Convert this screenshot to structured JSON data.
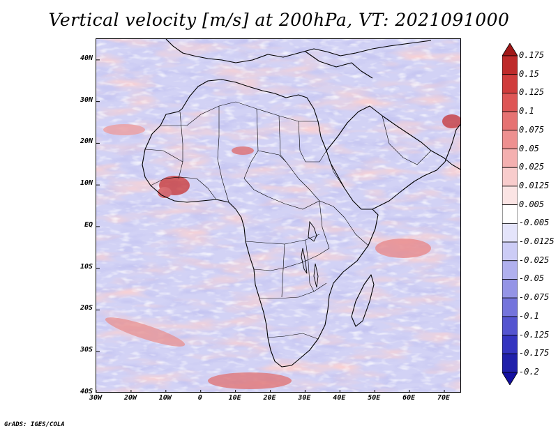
{
  "title": "Vertical velocity [m/s] at 200hPa, VT: 2021091000",
  "credit": "GrADS: IGES/COLA",
  "map": {
    "lon_range": [
      -30,
      75
    ],
    "lat_range": [
      -40,
      45
    ],
    "lat_ticks": [
      "40N",
      "30N",
      "20N",
      "10N",
      "EQ",
      "10S",
      "20S",
      "30S",
      "40S"
    ],
    "lat_values": [
      40,
      30,
      20,
      10,
      0,
      -10,
      -20,
      -30,
      -40
    ],
    "lon_ticks": [
      "30W",
      "20W",
      "10W",
      "0",
      "10E",
      "20E",
      "30E",
      "40E",
      "50E",
      "60E",
      "70E"
    ],
    "lon_values": [
      -30,
      -20,
      -10,
      0,
      10,
      20,
      30,
      40,
      50,
      60,
      70
    ],
    "field_description_colors": {
      "background": "#d4d4f6",
      "weak_up": "#f2b9b9",
      "strong_up": "#c03030",
      "weak_down": "#9898e8"
    }
  },
  "colorbar": {
    "labels": [
      "0.175",
      "0.15",
      "0.125",
      "0.1",
      "0.075",
      "0.05",
      "0.025",
      "0.0125",
      "0.005",
      "-0.005",
      "-0.0125",
      "-0.025",
      "-0.05",
      "-0.075",
      "-0.1",
      "-0.125",
      "-0.175",
      "-0.2"
    ],
    "colors": [
      "#a01818",
      "#be2a2a",
      "#d03c3c",
      "#de5656",
      "#e67272",
      "#ee9090",
      "#f4b0b0",
      "#f8cccc",
      "#fbe4e4",
      "#ffffff",
      "#e4e4fb",
      "#ccccf6",
      "#b0b0ee",
      "#9494e6",
      "#7474dc",
      "#5454d0",
      "#3434c0",
      "#2020aa",
      "#1410a0"
    ]
  }
}
